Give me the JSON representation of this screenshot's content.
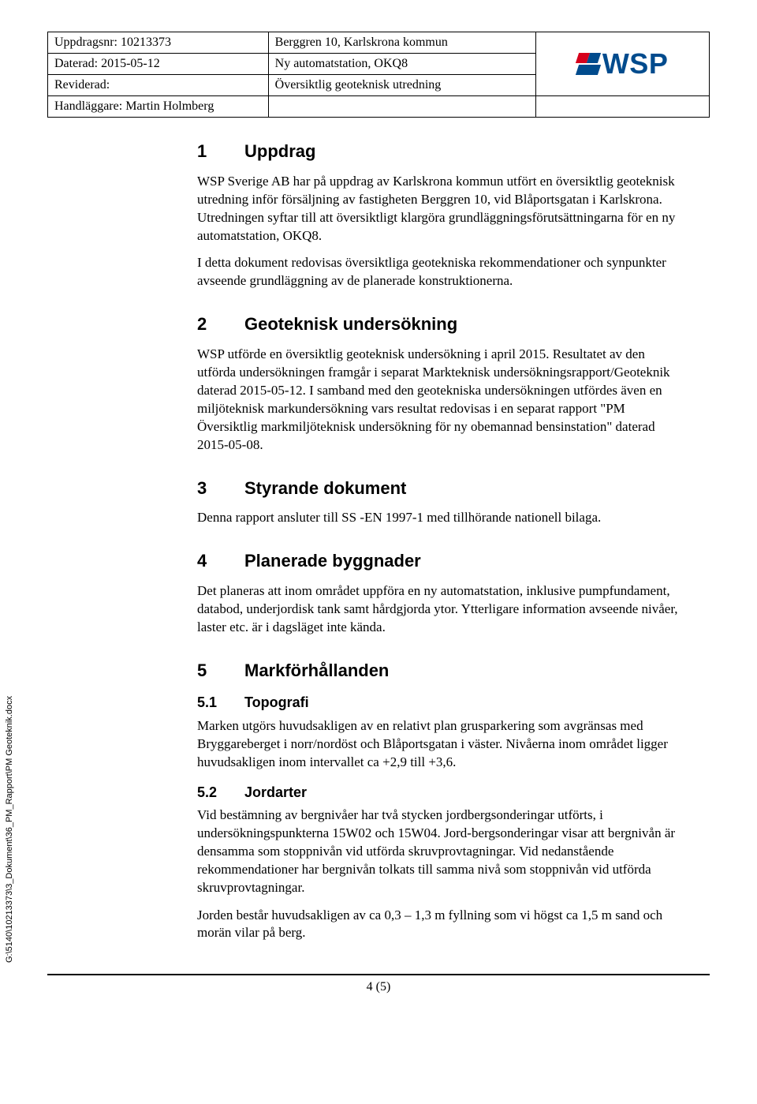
{
  "header": {
    "uppdragsnr_label": "Uppdragsnr: ",
    "uppdragsnr": "10213373",
    "daterad_label": "Daterad: ",
    "daterad": "2015-05-12",
    "reviderad_label": "Reviderad:",
    "handlaggare_label": "Handläggare: ",
    "handlaggare": "Martin Holmberg",
    "title1": "Berggren 10, Karlskrona kommun",
    "title2": "Ny automatstation, OKQ8",
    "title3": "Översiktlig geoteknisk utredning",
    "logo_text": "WSP"
  },
  "s1": {
    "num": "1",
    "title": "Uppdrag",
    "p1": "WSP Sverige AB har på uppdrag av Karlskrona kommun utfört en översiktlig geoteknisk utredning inför försäljning av fastigheten Berggren 10, vid Blåportsgatan i Karlskrona. Utredningen syftar till att översiktligt klargöra grundläggningsförutsättningarna för en ny automatstation, OKQ8.",
    "p2": "I detta dokument redovisas översiktliga geotekniska rekommendationer och synpunkter avseende grundläggning av de planerade konstruktionerna."
  },
  "s2": {
    "num": "2",
    "title": "Geoteknisk undersökning",
    "p1": "WSP utförde en översiktlig geoteknisk undersökning i april 2015. Resultatet av den utförda undersökningen framgår i separat Markteknisk undersökningsrapport/Geoteknik daterad 2015-05-12. I samband med den geotekniska undersökningen utfördes även en miljöteknisk markundersökning vars resultat redovisas i en separat rapport \"PM Översiktlig markmiljöteknisk undersökning för ny obemannad bensinstation\" daterad 2015-05-08."
  },
  "s3": {
    "num": "3",
    "title": "Styrande dokument",
    "p1": "Denna rapport ansluter till SS -EN 1997-1 med tillhörande nationell bilaga."
  },
  "s4": {
    "num": "4",
    "title": "Planerade byggnader",
    "p1": "Det planeras att inom området uppföra en ny automatstation, inklusive pumpfundament, databod, underjordisk tank samt hårdgjorda ytor. Ytterligare information avseende nivåer, laster etc. är i dagsläget inte kända."
  },
  "s5": {
    "num": "5",
    "title": "Markförhållanden",
    "s51_num": "5.1",
    "s51_title": "Topografi",
    "s51_p1": "Marken utgörs huvudsakligen av en relativt plan grusparkering som avgränsas med Bryggareberget i norr/nordöst och Blåportsgatan i väster. Nivåerna inom området ligger huvudsakligen inom intervallet ca +2,9 till +3,6.",
    "s52_num": "5.2",
    "s52_title": "Jordarter",
    "s52_p1": "Vid bestämning av bergnivåer har två stycken jordbergsonderingar utförts, i undersökningspunkterna 15W02 och 15W04. Jord-bergsonderingar visar att bergnivån är densamma som stoppnivån vid utförda skruvprovtagningar. Vid nedanstående rekommendationer har bergnivån tolkats till samma nivå som stoppnivån vid utförda skruvprovtagningar.",
    "s52_p2": "Jorden består huvudsakligen av ca 0,3 – 1,3 m fyllning som vi högst ca 1,5 m sand och morän vilar på berg."
  },
  "sidetext": "G:\\5140\\10213373\\3_Dokument\\36_PM_Rapport\\PM Geoteknik.docx",
  "footer": "4 (5)"
}
